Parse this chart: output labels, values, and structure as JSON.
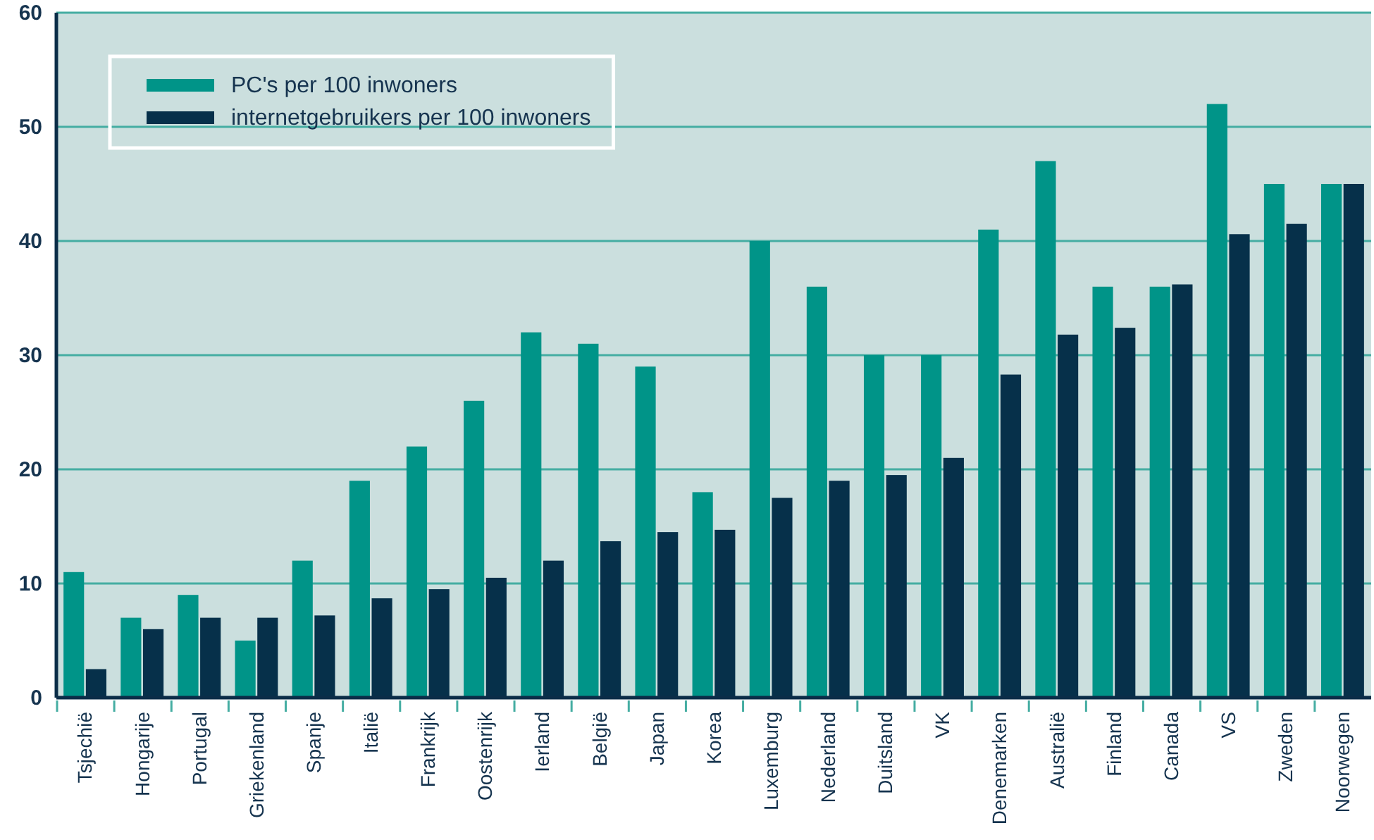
{
  "chart_data": {
    "type": "bar",
    "categories": [
      "Tsjechië",
      "Hongarije",
      "Portugal",
      "Griekenland",
      "Spanje",
      "Italië",
      "Frankrijk",
      "Oostenrijk",
      "Ierland",
      "België",
      "Japan",
      "Korea",
      "Luxemburg",
      "Nederland",
      "Duitsland",
      "VK",
      "Denemarken",
      "Australië",
      "Finland",
      "Canada",
      "VS",
      "Zweden",
      "Noorwegen"
    ],
    "series": [
      {
        "name": "PC's per 100 inwoners",
        "color": "#009488",
        "values": [
          11,
          7,
          9,
          5,
          12,
          19,
          22,
          26,
          32,
          31,
          29,
          18,
          40,
          36,
          30,
          30,
          41,
          47,
          36,
          36,
          52,
          45,
          45
        ]
      },
      {
        "name": "internetgebruikers per 100 inwoners",
        "color": "#06304a",
        "values": [
          2.5,
          6,
          7,
          7,
          7.2,
          8.7,
          9.5,
          10.5,
          12,
          13.7,
          14.5,
          14.7,
          17.5,
          19,
          19.5,
          21,
          28.3,
          31.8,
          32.4,
          36.2,
          40.6,
          41.5,
          45
        ]
      }
    ],
    "ylim": [
      0,
      60
    ],
    "yticks": [
      0,
      10,
      20,
      30,
      40,
      50,
      60
    ],
    "grid": "y",
    "legend": "top left"
  }
}
